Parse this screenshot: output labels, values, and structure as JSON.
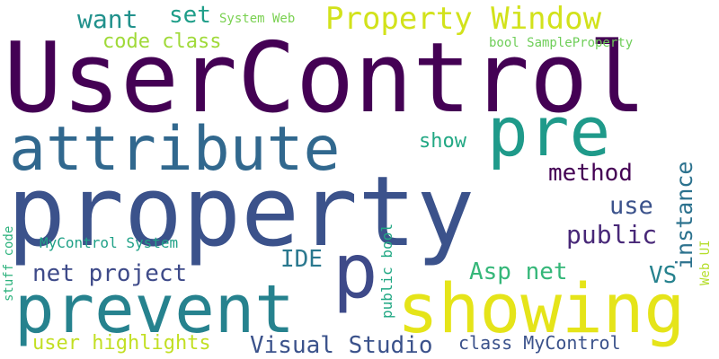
{
  "words": {
    "usercontrol": {
      "text": "UserControl",
      "color": "#440154"
    },
    "property": {
      "text": "property",
      "color": "#3b528b"
    },
    "attribute": {
      "text": "attribute",
      "color": "#31688e"
    },
    "prevent": {
      "text": "prevent",
      "color": "#26828e"
    },
    "showing": {
      "text": "showing",
      "color": "#e5e419"
    },
    "pre": {
      "text": "pre",
      "color": "#1f9a8a"
    },
    "p": {
      "text": "p",
      "color": "#3e4a89"
    },
    "property_window": {
      "text": "Property Window",
      "color": "#d2e21b"
    },
    "method": {
      "text": "method",
      "color": "#440154"
    },
    "use": {
      "text": "use",
      "color": "#3b528b"
    },
    "public": {
      "text": "public",
      "color": "#482878"
    },
    "instance": {
      "text": "instance",
      "color": "#2c728e"
    },
    "ide": {
      "text": "IDE",
      "color": "#2a788e"
    },
    "vs": {
      "text": "VS",
      "color": "#26828e"
    },
    "asp_net": {
      "text": "Asp net",
      "color": "#35b779"
    },
    "net_project": {
      "text": "net project",
      "color": "#3e4a89"
    },
    "visual_studio": {
      "text": "Visual Studio",
      "color": "#3b528b"
    },
    "user_highlights": {
      "text": "user highlights",
      "color": "#c2df23"
    },
    "class_mycontrol": {
      "text": "class MyControl",
      "color": "#3b528b"
    },
    "show": {
      "text": "show",
      "color": "#22a884"
    },
    "want": {
      "text": "want",
      "color": "#21918c"
    },
    "set": {
      "text": "set",
      "color": "#1f9e89"
    },
    "code_class": {
      "text": "code class",
      "color": "#a0da39"
    },
    "system_web": {
      "text": "System Web",
      "color": "#7ad151"
    },
    "bool_sampleproperty": {
      "text": "bool SampleProperty",
      "color": "#6ece58"
    },
    "mycontrol_system": {
      "text": "MyControl System",
      "color": "#1fa187"
    },
    "public_bool": {
      "text": "public bool",
      "color": "#22a884"
    },
    "web_ui": {
      "text": "Web UI",
      "color": "#b5de2b"
    },
    "stuff_code": {
      "text": "stuff code",
      "color": "#2db27d"
    }
  }
}
